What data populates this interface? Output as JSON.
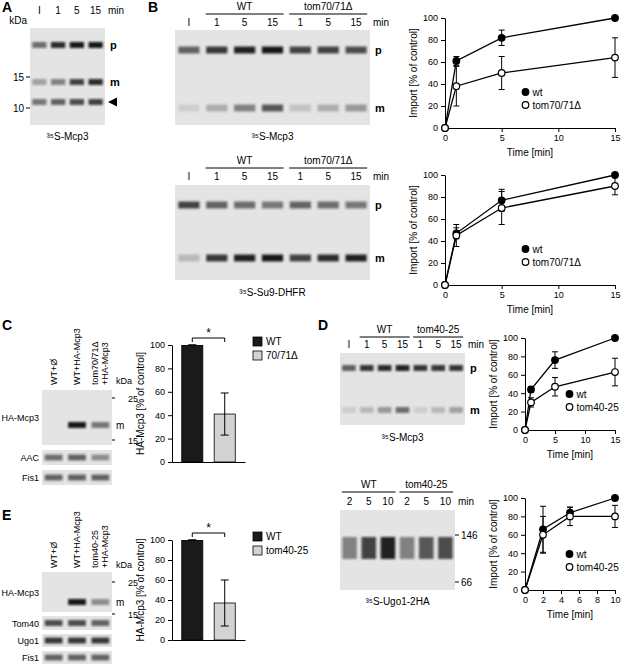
{
  "panel_labels": [
    "A",
    "B",
    "C",
    "D",
    "E"
  ],
  "blots": [
    {
      "type": "gel",
      "lanes": [
        "I",
        "1",
        "5",
        "15"
      ],
      "lane_unit": "min",
      "kda_label": "kDa",
      "markers": [
        15,
        10
      ],
      "bands": [
        {
          "label": "p",
          "intensity": [
            0.55,
            0.85,
            0.95,
            0.95
          ]
        },
        {
          "label": "m",
          "intensity": [
            0.3,
            0.45,
            0.75,
            0.85
          ]
        },
        {
          "marker": "arrowhead",
          "intensity": [
            0.5,
            0.6,
            0.7,
            0.75
          ]
        }
      ],
      "caption": "³⁵S-Mcp3"
    },
    {
      "type": "gel",
      "groups": [
        "WT",
        "tom70/71Δ"
      ],
      "lanes": [
        "I",
        "1",
        "5",
        "15",
        "1",
        "5",
        "15"
      ],
      "lane_unit": "min",
      "bands": [
        {
          "label": "p",
          "intensity": [
            0.6,
            0.8,
            0.9,
            0.95,
            0.75,
            0.75,
            0.7
          ]
        },
        {
          "label": "m",
          "intensity": [
            0.1,
            0.25,
            0.45,
            0.65,
            0.15,
            0.25,
            0.35
          ]
        }
      ],
      "caption": "³⁵S-Mcp3"
    },
    {
      "type": "gel",
      "groups": [
        "WT",
        "tom70/71Δ"
      ],
      "lanes": [
        "I",
        "1",
        "5",
        "15",
        "1",
        "5",
        "15"
      ],
      "lane_unit": "min",
      "bands": [
        {
          "label": "p",
          "intensity": [
            0.75,
            0.6,
            0.55,
            0.5,
            0.6,
            0.55,
            0.5
          ]
        },
        {
          "label": "m",
          "intensity": [
            0.2,
            0.8,
            0.9,
            0.95,
            0.75,
            0.85,
            0.9
          ]
        }
      ],
      "caption": "³⁵S-Su9-DHFR"
    },
    {
      "type": "western_blot",
      "lanes": [
        [
          "WT+Ø"
        ],
        [
          "WT+HA-Mcp3"
        ],
        [
          "tom70/71Δ",
          "+HA-Mcp3"
        ]
      ],
      "kda_label": "kDa",
      "markers": [
        25,
        15
      ],
      "rows": [
        {
          "label": "HA-Mcp3",
          "band_label": "m",
          "intensity": [
            0,
            0.95,
            0.5
          ]
        },
        {
          "label": "AAC",
          "intensity": [
            0.55,
            0.6,
            0.4
          ]
        },
        {
          "label": "Fis1",
          "intensity": [
            0.6,
            0.6,
            0.6
          ]
        }
      ]
    },
    {
      "type": "gel",
      "groups": [
        "WT",
        "tom40-25"
      ],
      "lanes": [
        "I",
        "1",
        "5",
        "15",
        "1",
        "5",
        "15"
      ],
      "lane_unit": "min",
      "bands": [
        {
          "label": "p",
          "intensity": [
            0.6,
            0.8,
            0.85,
            0.9,
            0.8,
            0.8,
            0.8
          ]
        },
        {
          "label": "m",
          "intensity": [
            0.1,
            0.2,
            0.35,
            0.55,
            0.1,
            0.2,
            0.3
          ]
        }
      ],
      "caption": "³⁵S-Mcp3"
    },
    {
      "type": "gel",
      "groups": [
        "WT",
        "tom40-25"
      ],
      "lanes": [
        "2",
        "5",
        "10",
        "2",
        "5",
        "10"
      ],
      "lane_unit": "min",
      "markers": [
        146,
        66
      ],
      "bands": [
        {
          "intensity": [
            0.45,
            0.75,
            0.9,
            0.45,
            0.65,
            0.7
          ]
        }
      ],
      "caption": "³⁵S-Ugo1-2HA"
    },
    {
      "type": "western_blot",
      "lanes": [
        [
          "WT+Ø"
        ],
        [
          "WT+HA-Mcp3"
        ],
        [
          "tom40-25",
          "+HA-Mcp3"
        ]
      ],
      "kda_label": "kDa",
      "markers": [
        25,
        15
      ],
      "rows": [
        {
          "label": "HA-Mcp3",
          "band_label": "m",
          "intensity": [
            0,
            0.95,
            0.4
          ]
        },
        {
          "label": "Tom40",
          "intensity": [
            0.7,
            0.7,
            0.6
          ]
        },
        {
          "label": "Ugo1",
          "intensity": [
            0.8,
            0.8,
            0.8
          ]
        },
        {
          "label": "Fis1",
          "intensity": [
            0.6,
            0.6,
            0.6
          ]
        }
      ]
    }
  ],
  "chart_data": [
    {
      "type": "line",
      "x_label": "Time [min]",
      "y_label": "Import [% of control]",
      "x": [
        0,
        1,
        5,
        15
      ],
      "xlim": [
        0,
        15
      ],
      "xticks": [
        0,
        5,
        10,
        15
      ],
      "ylim": [
        0,
        100
      ],
      "yticks": [
        0,
        20,
        40,
        60,
        80,
        100
      ],
      "legend": "lower right",
      "series": [
        {
          "name": "wt",
          "color": "#000000",
          "marker": "filled_circle",
          "values": [
            0,
            61,
            82,
            100
          ],
          "errors": [
            0,
            4,
            7,
            0
          ]
        },
        {
          "name": "tom70/71Δ",
          "color": "#000000",
          "marker": "open_circle",
          "values": [
            0,
            38,
            50,
            64
          ],
          "errors": [
            0,
            18,
            15,
            18
          ]
        }
      ]
    },
    {
      "type": "line",
      "x_label": "Time [min]",
      "y_label": "Import [% of control]",
      "x": [
        0,
        1,
        5,
        15
      ],
      "xlim": [
        0,
        15
      ],
      "xticks": [
        0,
        5,
        10,
        15
      ],
      "ylim": [
        0,
        100
      ],
      "yticks": [
        0,
        20,
        40,
        60,
        80,
        100
      ],
      "legend": "lower right",
      "series": [
        {
          "name": "wt",
          "color": "#000000",
          "marker": "filled_circle",
          "values": [
            0,
            47,
            77,
            100
          ],
          "errors": [
            0,
            5,
            10,
            0
          ]
        },
        {
          "name": "tom70/71Δ",
          "color": "#000000",
          "marker": "open_circle",
          "values": [
            0,
            45,
            70,
            90
          ],
          "errors": [
            0,
            10,
            15,
            8
          ]
        }
      ]
    },
    {
      "type": "bar",
      "categories": [
        "WT",
        "70/71Δ"
      ],
      "values": [
        100,
        41
      ],
      "errors": [
        0,
        18
      ],
      "colors": [
        "#1a1a1a",
        "#d3d3d3"
      ],
      "y_label": "HA-Mcp3 [% of control]",
      "ylim": [
        0,
        100
      ],
      "yticks": [
        0,
        20,
        40,
        60,
        80,
        100
      ],
      "legend": "right",
      "tick_labels": "y",
      "annotations": [
        "*"
      ]
    },
    {
      "type": "line",
      "x_label": "Time [min]",
      "y_label": "Import [% of control]",
      "x": [
        0,
        1,
        5,
        15
      ],
      "xlim": [
        0,
        15
      ],
      "xticks": [
        0,
        5,
        10,
        15
      ],
      "ylim": [
        0,
        100
      ],
      "yticks": [
        0,
        20,
        40,
        60,
        80,
        100
      ],
      "legend": "lower right",
      "series": [
        {
          "name": "wt",
          "color": "#000000",
          "marker": "filled_circle",
          "values": [
            0,
            44,
            76,
            100
          ],
          "errors": [
            0,
            3,
            9,
            0
          ]
        },
        {
          "name": "tom40-25",
          "color": "#000000",
          "marker": "open_circle",
          "values": [
            0,
            30,
            47,
            63
          ],
          "errors": [
            0,
            5,
            10,
            15
          ]
        }
      ]
    },
    {
      "type": "line",
      "x_label": "Time [min]",
      "y_label": "Import [% of control]",
      "x": [
        0,
        2,
        5,
        10
      ],
      "xlim": [
        0,
        10
      ],
      "xticks": [
        0,
        2,
        4,
        6,
        8,
        10
      ],
      "ylim": [
        0,
        100
      ],
      "yticks": [
        0,
        20,
        40,
        60,
        80,
        100
      ],
      "legend": "lower right",
      "series": [
        {
          "name": "wt",
          "color": "#000000",
          "marker": "filled_circle",
          "values": [
            0,
            66,
            84,
            100
          ],
          "errors": [
            0,
            25,
            6,
            0
          ]
        },
        {
          "name": "tom40-25",
          "color": "#000000",
          "marker": "open_circle",
          "values": [
            0,
            60,
            80,
            80
          ],
          "errors": [
            0,
            20,
            10,
            12
          ]
        }
      ]
    },
    {
      "type": "bar",
      "categories": [
        "WT",
        "tom40-25"
      ],
      "values": [
        100,
        37
      ],
      "errors": [
        0,
        23
      ],
      "colors": [
        "#1a1a1a",
        "#d3d3d3"
      ],
      "y_label": "HA-Mcp3 [% of control]",
      "ylim": [
        0,
        100
      ],
      "yticks": [
        0,
        20,
        40,
        60,
        80,
        100
      ],
      "legend": "right",
      "tick_labels": "y",
      "annotations": [
        "*"
      ]
    }
  ]
}
